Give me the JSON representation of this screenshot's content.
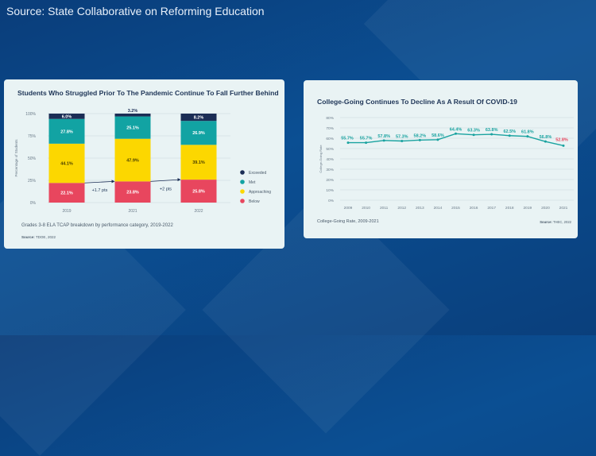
{
  "header": {
    "source_text": "Source: State Collaborative on Reforming Education"
  },
  "chart_data": [
    {
      "type": "bar",
      "stacked": true,
      "title": "Students Who Struggled Prior To The Pandemic Continue To Fall Further Behind",
      "ylabel": "Percentage of Students",
      "ylim": [
        0,
        100
      ],
      "yticks": [
        "0%",
        "25%",
        "50%",
        "75%",
        "100%"
      ],
      "categories": [
        "2019",
        "2021",
        "2022"
      ],
      "series": [
        {
          "name": "Below",
          "color": "#e8465e",
          "values": [
            22.1,
            23.8,
            25.8
          ],
          "labels": [
            "22.1%",
            "23.8%",
            "25.8%"
          ]
        },
        {
          "name": "Approaching",
          "color": "#fcd700",
          "values": [
            44.1,
            47.9,
            39.1
          ],
          "labels": [
            "44.1%",
            "47.9%",
            "39.1%"
          ]
        },
        {
          "name": "Met",
          "color": "#12a3a3",
          "values": [
            27.8,
            25.1,
            26.9
          ],
          "labels": [
            "27.8%",
            "25.1%",
            "26.9%"
          ]
        },
        {
          "name": "Exceeded",
          "color": "#1b2d55",
          "values": [
            6.0,
            3.2,
            8.2
          ],
          "labels": [
            "6.0%",
            "3.2%",
            "8.2%"
          ]
        }
      ],
      "annotations": [
        "+1.7 pts",
        "+2 pts"
      ],
      "legend_position": "right",
      "caption": "Grades 3-8 ELA TCAP breakdown by performance category, 2019-2022",
      "source_label": "Source:",
      "source_value": "TDOE, 2022"
    },
    {
      "type": "line",
      "title": "College-Going Continues To Decline As A Result Of COVID-19",
      "ylabel": "College-Going Rate",
      "ylim": [
        0,
        80
      ],
      "yticks": [
        "0%",
        "10%",
        "20%",
        "30%",
        "40%",
        "50%",
        "60%",
        "70%",
        "80%"
      ],
      "x": [
        "2009",
        "2010",
        "2011",
        "2012",
        "2013",
        "2014",
        "2015",
        "2016",
        "2017",
        "2018",
        "2019",
        "2020",
        "2021"
      ],
      "values": [
        55.7,
        55.7,
        57.8,
        57.3,
        58.2,
        58.6,
        64.4,
        63.3,
        63.8,
        62.5,
        61.8,
        56.8,
        52.8
      ],
      "labels": [
        "55.7%",
        "55.7%",
        "57.8%",
        "57.3%",
        "58.2%",
        "58.6%",
        "64.4%",
        "63.3%",
        "63.8%",
        "62.5%",
        "61.8%",
        "56.8%",
        "52.8%"
      ],
      "line_color": "#1aa3a0",
      "highlight_color": "#e8465e",
      "caption": "College-Going Rate, 2009-2021",
      "source_label": "Source:",
      "source_value": "THEC, 2022"
    }
  ]
}
